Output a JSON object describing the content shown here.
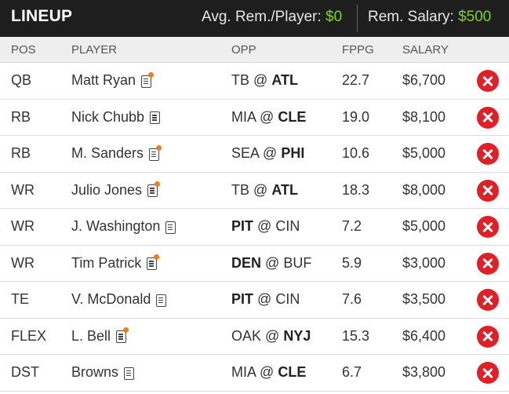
{
  "header": {
    "title": "LINEUP",
    "avg_label": "Avg. Rem./Player:",
    "avg_value": "$0",
    "rem_label": "Rem. Salary:",
    "rem_value": "$500"
  },
  "columns": {
    "pos": "POS",
    "player": "PLAYER",
    "opp": "OPP",
    "fppg": "FPPG",
    "salary": "SALARY"
  },
  "rows": [
    {
      "pos": "QB",
      "player": "Matt Ryan",
      "news": true,
      "opp_away": "TB",
      "opp_home": "ATL",
      "bold": "home",
      "fppg": "22.7",
      "salary": "$6,700"
    },
    {
      "pos": "RB",
      "player": "Nick Chubb",
      "news": false,
      "opp_away": "MIA",
      "opp_home": "CLE",
      "bold": "home",
      "fppg": "19.0",
      "salary": "$8,100"
    },
    {
      "pos": "RB",
      "player": "M. Sanders",
      "news": true,
      "opp_away": "SEA",
      "opp_home": "PHI",
      "bold": "home",
      "fppg": "10.6",
      "salary": "$5,000"
    },
    {
      "pos": "WR",
      "player": "Julio Jones",
      "news": true,
      "opp_away": "TB",
      "opp_home": "ATL",
      "bold": "home",
      "fppg": "18.3",
      "salary": "$8,000"
    },
    {
      "pos": "WR",
      "player": "J. Washington",
      "news": false,
      "opp_away": "PIT",
      "opp_home": "CIN",
      "bold": "away",
      "fppg": "7.2",
      "salary": "$5,000"
    },
    {
      "pos": "WR",
      "player": "Tim Patrick",
      "news": true,
      "opp_away": "DEN",
      "opp_home": "BUF",
      "bold": "away",
      "fppg": "5.9",
      "salary": "$3,000"
    },
    {
      "pos": "TE",
      "player": "V. McDonald",
      "news": false,
      "opp_away": "PIT",
      "opp_home": "CIN",
      "bold": "away",
      "fppg": "7.6",
      "salary": "$3,500"
    },
    {
      "pos": "FLEX",
      "player": "L. Bell",
      "news": true,
      "opp_away": "OAK",
      "opp_home": "NYJ",
      "bold": "home",
      "fppg": "15.3",
      "salary": "$6,400"
    },
    {
      "pos": "DST",
      "player": "Browns",
      "news": false,
      "opp_away": "MIA",
      "opp_home": "CLE",
      "bold": "home",
      "fppg": "6.7",
      "salary": "$3,800"
    }
  ],
  "colors": {
    "header_bg": "#1e1e1e",
    "money_green": "#7ed321",
    "remove_red": "#e01f26",
    "news_orange": "#f07c1b"
  },
  "icons": {
    "remove": "close-circle-icon",
    "notes": "player-notes-icon",
    "news": "news-dot-icon"
  }
}
